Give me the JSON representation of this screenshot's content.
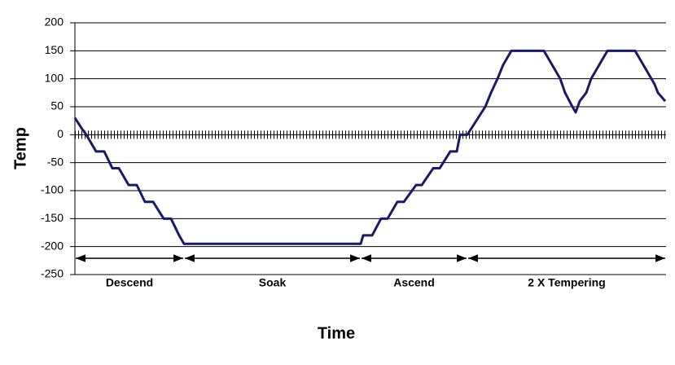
{
  "chart_data": {
    "type": "line",
    "y_label": "Temp",
    "x_label": "Time",
    "x": [
      0,
      8,
      14,
      26,
      36,
      46,
      54,
      66,
      76,
      86,
      96,
      109,
      118,
      128,
      134,
      351,
      354,
      365,
      376,
      384,
      396,
      404,
      419,
      426,
      440,
      448,
      461,
      469,
      473,
      482,
      504,
      511,
      519,
      526,
      536,
      576,
      586,
      596,
      602,
      611,
      615,
      620,
      628,
      634,
      644,
      654,
      688,
      698,
      708,
      712,
      716,
      725
    ],
    "series": [
      {
        "name": "Temp",
        "color": "#1a1a6b",
        "values": [
          30,
          12,
          0,
          -30,
          -30,
          -60,
          -60,
          -90,
          -90,
          -120,
          -120,
          -150,
          -150,
          -180,
          -195,
          -195,
          -180,
          -180,
          -150,
          -150,
          -120,
          -120,
          -90,
          -90,
          -60,
          -60,
          -30,
          -30,
          0,
          0,
          50,
          75,
          100,
          125,
          150,
          150,
          125,
          100,
          75,
          50,
          40,
          60,
          75,
          100,
          125,
          150,
          150,
          125,
          100,
          90,
          75,
          60
        ]
      }
    ],
    "xlim": [
      0,
      726
    ],
    "ylim": [
      -250,
      200
    ],
    "yticks": [
      -250,
      -200,
      -150,
      -100,
      -50,
      0,
      50,
      100,
      150,
      200
    ],
    "grid": true,
    "phases": [
      {
        "label": "Descend",
        "start": 0,
        "end": 134
      },
      {
        "label": "Soak",
        "start": 134,
        "end": 351
      },
      {
        "label": "Ascend",
        "start": 351,
        "end": 482
      },
      {
        "label": "2 X Tempering",
        "start": 482,
        "end": 726
      }
    ]
  }
}
